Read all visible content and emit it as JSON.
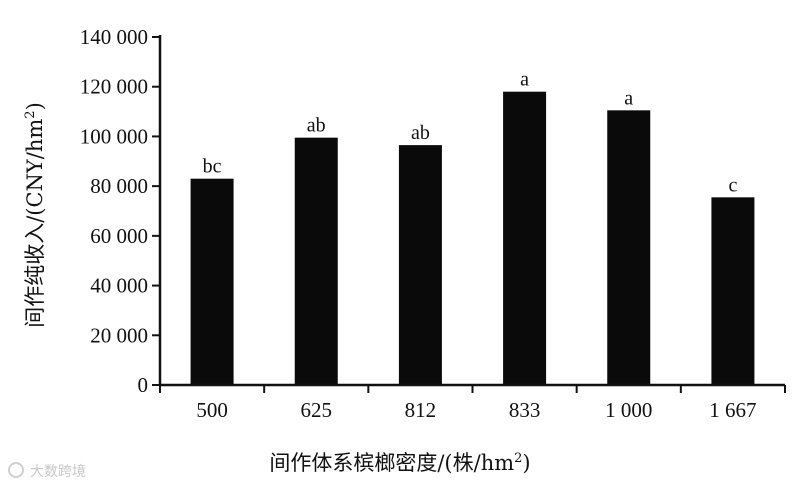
{
  "chart_data": {
    "type": "bar",
    "categories": [
      "500",
      "625",
      "812",
      "833",
      "1 000",
      "1 667"
    ],
    "values": [
      83000,
      99500,
      96500,
      118000,
      110500,
      75500
    ],
    "annotations": [
      "bc",
      "ab",
      "ab",
      "a",
      "a",
      "c"
    ],
    "ylim": [
      0,
      140000
    ],
    "yticks": [
      0,
      20000,
      40000,
      60000,
      80000,
      100000,
      120000,
      140000
    ],
    "ytick_labels": [
      "0",
      "20 000",
      "40 000",
      "60 000",
      "80 000",
      "100 000",
      "120 000",
      "140 000"
    ],
    "xlabel": "间作体系槟榔密度/(株/hm",
    "xlabel_sup": "2",
    "xlabel_end": ")",
    "ylabel": "间作纯收入/(CNY/hm",
    "ylabel_sup": "2",
    "ylabel_end": ")",
    "grid": false,
    "bar_color": "#0a0a0a"
  },
  "watermark": "大数跨境"
}
